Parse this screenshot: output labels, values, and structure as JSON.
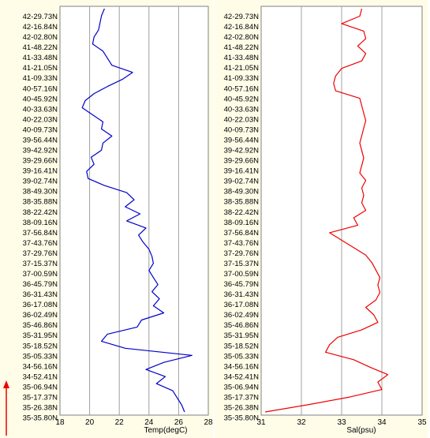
{
  "colors": {
    "background": "#fffde8",
    "grid": "#a0a0a0",
    "temperature_line": "#0000cc",
    "salinity_line": "#ee0000",
    "arrow": "#ee0000"
  },
  "chart_data": [
    {
      "type": "line",
      "xlabel": "Temp(degC)",
      "ylabel": "",
      "xlim": [
        18,
        28
      ],
      "x_ticks": [
        "18",
        "20",
        "22",
        "24",
        "26",
        "28"
      ],
      "x_grid": [
        20,
        22,
        24,
        26
      ],
      "y_tick_labels": [
        "42-29.73N",
        "42-16.84N",
        "42-02.80N",
        "41-48.22N",
        "41-33.48N",
        "41-21.05N",
        "41-09.33N",
        "40-57.16N",
        "40-45.92N",
        "40-33.63N",
        "40-22.03N",
        "40-09.73N",
        "39-56.44N",
        "39-42.92N",
        "39-29.66N",
        "39-16.41N",
        "39-02.74N",
        "38-49.30N",
        "38-35.88N",
        "38-22.42N",
        "38-09.16N",
        "37-56.84N",
        "37-43.76N",
        "37-29.76N",
        "37-15.37N",
        "37-00.59N",
        "36-45.79N",
        "36-31.43N",
        "36-17.08N",
        "36-02.49N",
        "35-46.86N",
        "35-31.95N",
        "35-18.52N",
        "35-05.33N",
        "34-56.16N",
        "34-52.41N",
        "35-06.94N",
        "35-17.37N",
        "35-26.38N",
        "35-35.80N"
      ],
      "series": [
        {
          "color": "#0000cc",
          "values": [
            21.0,
            20.8,
            20.7,
            20.6,
            20.3,
            20.2,
            20.9,
            21.2,
            21.5,
            22.9,
            22.2,
            21.2,
            20.3,
            19.7,
            19.5,
            20.2,
            20.9,
            20.8,
            21.5,
            20.9,
            20.8,
            20.1,
            20.3,
            19.8,
            19.9,
            21.0,
            22.5,
            23.0,
            22.4,
            23.4,
            22.5,
            23.8,
            23.3,
            23.6,
            24.0,
            24.2,
            24.3,
            24.0,
            24.3,
            24.6,
            24.2,
            24.7,
            24.3,
            25.0,
            23.5,
            23.2,
            21.2,
            20.8,
            22.4,
            26.9,
            25.0,
            23.8,
            25.1,
            24.5,
            25.6,
            25.9,
            26.2,
            26.4
          ]
        }
      ]
    },
    {
      "type": "line",
      "xlabel": "Sal(psu)",
      "ylabel": "",
      "xlim": [
        31,
        35
      ],
      "x_ticks": [
        "31",
        "32",
        "33",
        "34",
        "35"
      ],
      "x_grid": [
        32,
        33,
        34
      ],
      "y_tick_labels": [
        "42-29.73N",
        "42-16.84N",
        "42-02.80N",
        "41-48.22N",
        "41-33.48N",
        "41-21.05N",
        "41-09.33N",
        "40-57.16N",
        "40-45.92N",
        "40-33.63N",
        "40-22.03N",
        "40-09.73N",
        "39-56.44N",
        "39-42.92N",
        "39-29.66N",
        "39-16.41N",
        "39-02.74N",
        "38-49.30N",
        "38-35.88N",
        "38-22.42N",
        "38-09.16N",
        "37-56.84N",
        "37-43.76N",
        "37-29.76N",
        "37-15.37N",
        "37-00.59N",
        "36-45.79N",
        "36-31.43N",
        "36-17.08N",
        "36-02.49N",
        "35-46.86N",
        "35-31.95N",
        "35-18.52N",
        "35-05.33N",
        "34-56.16N",
        "34-52.41N",
        "35-06.94N",
        "35-17.37N",
        "35-26.38N",
        "35-35.80N"
      ],
      "series": [
        {
          "color": "#ee0000",
          "values": [
            33.5,
            33.45,
            33.0,
            33.55,
            33.6,
            33.4,
            33.6,
            33.5,
            33.0,
            32.85,
            32.8,
            32.85,
            33.45,
            33.5,
            33.55,
            33.6,
            33.55,
            33.5,
            33.45,
            33.5,
            33.55,
            33.5,
            33.45,
            33.6,
            33.5,
            33.55,
            33.5,
            33.6,
            33.3,
            33.4,
            32.7,
            33.0,
            33.3,
            33.6,
            33.75,
            33.85,
            33.95,
            33.9,
            33.95,
            33.85,
            33.6,
            33.8,
            33.9,
            33.5,
            32.9,
            32.7,
            32.6,
            33.3,
            33.7,
            34.15,
            33.9,
            34.0,
            33.2,
            32.2,
            31.1
          ]
        }
      ]
    }
  ]
}
